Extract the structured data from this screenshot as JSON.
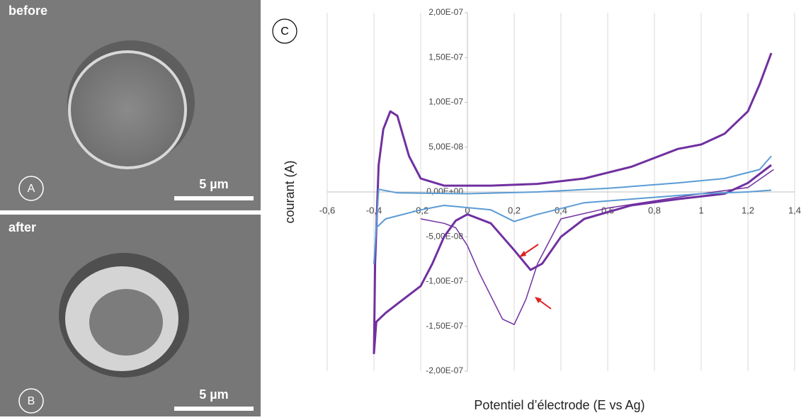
{
  "images": [
    {
      "caption": "before",
      "label": "A",
      "scale": "5 µm"
    },
    {
      "caption": "after",
      "label": "B",
      "scale": "5 µm"
    }
  ],
  "chart_data": {
    "type": "line",
    "panel_label": "C",
    "xlabel": "Potentiel d’électrode (E vs Ag)",
    "ylabel": "courant (A)",
    "xlim": [
      -0.6,
      1.4
    ],
    "ylim": [
      -2e-07,
      2e-07
    ],
    "xticks": [
      {
        "value": -0.6,
        "label": "-0,6"
      },
      {
        "value": -0.4,
        "label": "-0,4"
      },
      {
        "value": -0.2,
        "label": "-0,2"
      },
      0,
      {
        "value": 0.2,
        "label": "0,2"
      },
      {
        "value": 0.4,
        "label": "0,4"
      },
      {
        "value": 0.6,
        "label": "0,6"
      },
      {
        "value": 0.8,
        "label": "0,8"
      },
      1,
      {
        "value": 1.2,
        "label": "1,2"
      },
      {
        "value": 1.4,
        "label": "1,4"
      }
    ],
    "yticks": [
      {
        "value": -2e-07,
        "label": "-2,00E-07"
      },
      {
        "value": -1.5e-07,
        "label": "-1,50E-07"
      },
      {
        "value": -1e-07,
        "label": "-1,00E-07"
      },
      {
        "value": -5e-08,
        "label": "-5,00E-08"
      },
      {
        "value": 0,
        "label": "0,00E+00"
      },
      {
        "value": 5e-08,
        "label": "5,00E-08"
      },
      {
        "value": 1e-07,
        "label": "1,00E-07"
      },
      {
        "value": 1.5e-07,
        "label": "1,50E-07"
      },
      {
        "value": 2e-07,
        "label": "2,00E-07"
      }
    ],
    "grid": "x",
    "series": [
      {
        "color": "#7030a0",
        "width": 3,
        "x": [
          1.3,
          1.25,
          1.2,
          1.1,
          1.0,
          0.9,
          0.7,
          0.5,
          0.3,
          0.1,
          -0.1,
          -0.2,
          -0.25,
          -0.3,
          -0.33,
          -0.36,
          -0.38,
          -0.395,
          -0.4,
          -0.39,
          -0.35,
          -0.3,
          -0.2,
          -0.15,
          -0.1,
          -0.05,
          0.0,
          0.1,
          0.2,
          0.27,
          0.32,
          0.4,
          0.5,
          0.7,
          0.9,
          1.1,
          1.2,
          1.3
        ],
        "values": [
          1.55e-07,
          1.2e-07,
          9e-08,
          6.5e-08,
          5.3e-08,
          4.8e-08,
          2.8e-08,
          1.5e-08,
          9e-09,
          7e-09,
          7e-09,
          1.5e-08,
          4e-08,
          8.5e-08,
          9e-08,
          7e-08,
          3e-08,
          -8e-08,
          -1.8e-07,
          -1.45e-07,
          -1.35e-07,
          -1.25e-07,
          -1.05e-07,
          -8e-08,
          -5e-08,
          -3.2e-08,
          -2.5e-08,
          -3.5e-08,
          -6.5e-08,
          -8.7e-08,
          -8e-08,
          -5e-08,
          -3e-08,
          -1.5e-08,
          -8e-09,
          -2e-09,
          1e-08,
          3e-08
        ]
      },
      {
        "color": "#7030a0",
        "width": 1.5,
        "x": [
          1.31,
          1.2,
          1.0,
          0.8,
          0.6,
          0.4,
          0.3,
          0.25,
          0.2,
          0.15,
          0.05,
          0.0,
          -0.05,
          -0.1,
          -0.2
        ],
        "values": [
          2.5e-08,
          5e-09,
          -2e-09,
          -1e-08,
          -1.8e-08,
          -3e-08,
          -8e-08,
          -1.2e-07,
          -1.48e-07,
          -1.42e-07,
          -9e-08,
          -6e-08,
          -4e-08,
          -3.5e-08,
          -3e-08
        ]
      },
      {
        "color": "#5b9bd5",
        "width": 2,
        "x": [
          1.3,
          1.25,
          1.1,
          0.9,
          0.6,
          0.3,
          0.0,
          -0.3,
          -0.38,
          -0.4,
          -0.39,
          -0.35,
          -0.2,
          -0.1,
          0.1,
          0.2,
          0.3,
          0.5,
          0.8,
          1.0,
          1.2,
          1.3
        ],
        "values": [
          4e-08,
          2.5e-08,
          1.5e-08,
          1e-08,
          4e-09,
          0,
          -2e-09,
          -1e-09,
          3e-09,
          -8e-08,
          -4e-08,
          -3e-08,
          -2e-08,
          -1.5e-08,
          -2e-08,
          -3.3e-08,
          -2.5e-08,
          -1.2e-08,
          -6e-09,
          -2e-09,
          0,
          2e-09
        ]
      }
    ]
  }
}
